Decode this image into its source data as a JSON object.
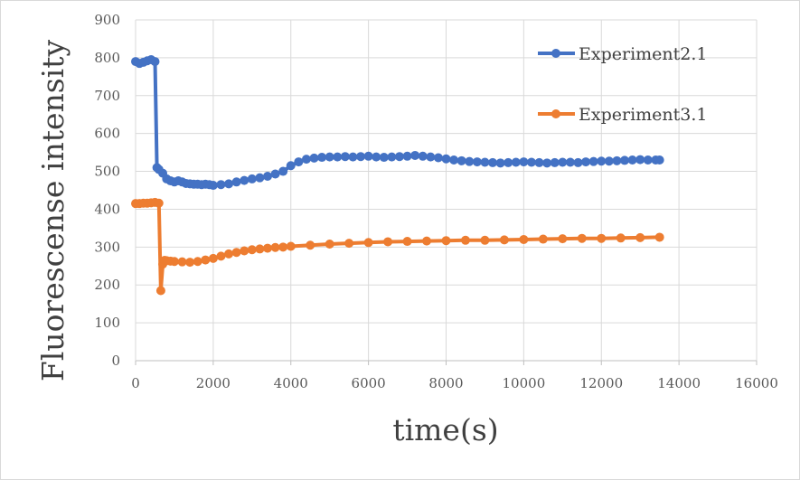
{
  "chart_data": {
    "type": "line",
    "xlabel": "time(s)",
    "ylabel": "Fluorescense intensity",
    "xlim": [
      0,
      16000
    ],
    "ylim": [
      0,
      900
    ],
    "xticks": [
      0,
      2000,
      4000,
      6000,
      8000,
      10000,
      12000,
      14000,
      16000
    ],
    "yticks": [
      0,
      100,
      200,
      300,
      400,
      500,
      600,
      700,
      800,
      900
    ],
    "grid": true,
    "legend_position": "right",
    "series": [
      {
        "name": "Experiment2.1",
        "color": "#4472C4",
        "x": [
          0,
          100,
          200,
          300,
          400,
          500,
          550,
          600,
          700,
          800,
          900,
          1000,
          1100,
          1200,
          1300,
          1400,
          1500,
          1600,
          1700,
          1800,
          1900,
          2000,
          2200,
          2400,
          2600,
          2800,
          3000,
          3200,
          3400,
          3600,
          3800,
          4000,
          4200,
          4400,
          4600,
          4800,
          5000,
          5200,
          5400,
          5600,
          5800,
          6000,
          6200,
          6400,
          6600,
          6800,
          7000,
          7200,
          7400,
          7600,
          7800,
          8000,
          8200,
          8400,
          8600,
          8800,
          9000,
          9200,
          9400,
          9600,
          9800,
          10000,
          10200,
          10400,
          10600,
          10800,
          11000,
          11200,
          11400,
          11600,
          11800,
          12000,
          12200,
          12400,
          12600,
          12800,
          13000,
          13200,
          13400,
          13500
        ],
        "y": [
          790,
          785,
          788,
          792,
          795,
          790,
          510,
          505,
          495,
          480,
          475,
          472,
          475,
          472,
          468,
          467,
          466,
          466,
          465,
          466,
          465,
          463,
          465,
          467,
          472,
          476,
          480,
          483,
          487,
          493,
          500,
          515,
          525,
          532,
          535,
          537,
          538,
          538,
          539,
          538,
          539,
          540,
          538,
          537,
          538,
          539,
          540,
          542,
          540,
          538,
          536,
          533,
          530,
          528,
          526,
          525,
          524,
          523,
          522,
          523,
          524,
          525,
          524,
          523,
          522,
          523,
          524,
          524,
          523,
          525,
          526,
          527,
          527,
          528,
          529,
          530,
          531,
          530,
          530,
          530
        ]
      },
      {
        "name": "Experiment3.1",
        "color": "#ED7D31",
        "x": [
          0,
          100,
          200,
          300,
          400,
          500,
          600,
          650,
          700,
          750,
          800,
          900,
          1000,
          1200,
          1400,
          1600,
          1800,
          2000,
          2200,
          2400,
          2600,
          2800,
          3000,
          3200,
          3400,
          3600,
          3800,
          4000,
          4500,
          5000,
          5500,
          6000,
          6500,
          7000,
          7500,
          8000,
          8500,
          9000,
          9500,
          10000,
          10500,
          11000,
          11500,
          12000,
          12500,
          13000,
          13500
        ],
        "y": [
          415,
          415,
          416,
          416,
          417,
          418,
          416,
          185,
          255,
          265,
          264,
          263,
          262,
          261,
          260,
          262,
          266,
          270,
          276,
          282,
          286,
          290,
          293,
          295,
          297,
          299,
          300,
          302,
          305,
          308,
          310,
          312,
          314,
          315,
          316,
          317,
          318,
          318,
          319,
          320,
          321,
          322,
          323,
          323,
          324,
          325,
          326
        ]
      }
    ]
  }
}
